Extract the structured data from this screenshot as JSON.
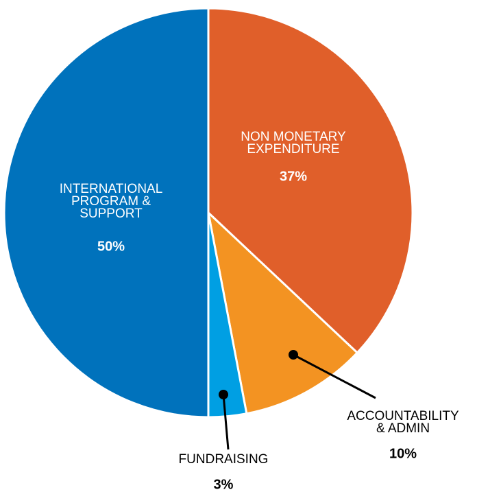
{
  "chart_data": {
    "type": "pie",
    "categories": [
      [
        "NON MONETARY",
        "EXPENDITURE"
      ],
      [
        "ACCOUNTABILITY",
        "& ADMIN"
      ],
      [
        "FUNDRAISING"
      ],
      [
        "INTERNATIONAL",
        "PROGRAM &",
        "SUPPORT"
      ]
    ],
    "values": [
      37,
      10,
      3,
      50
    ],
    "value_labels": [
      "37%",
      "10%",
      "3%",
      "50%"
    ],
    "colors": [
      "#e05f2a",
      "#f39322",
      "#009fe3",
      "#0072bc"
    ]
  }
}
